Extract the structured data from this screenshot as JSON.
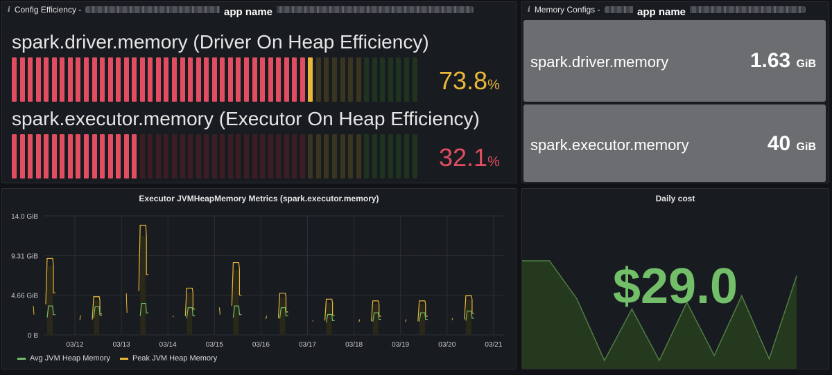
{
  "config_panel": {
    "title": "Config Efficiency -",
    "app_name": "app name",
    "gauges": [
      {
        "label": "spark.driver.memory (Driver On Heap Efficiency)",
        "value": "73.8",
        "unit": "%",
        "fraction": 0.738,
        "color": "#eab839"
      },
      {
        "label": "spark.executor.memory (Executor On Heap Efficiency)",
        "value": "32.1",
        "unit": "%",
        "fraction": 0.321,
        "color": "#e24d62"
      }
    ]
  },
  "memory_panel": {
    "title": "Memory Configs -",
    "app_name": "app name",
    "stats": [
      {
        "label": "spark.driver.memory",
        "value": "1.63",
        "unit": "GiB"
      },
      {
        "label": "spark.executor.memory",
        "value": "40",
        "unit": "GiB"
      }
    ]
  },
  "jvm_panel": {
    "title": "Executor JVMHeapMemory Metrics (spark.executor.memory)",
    "legend": [
      {
        "name": "Avg JVM Heap Memory",
        "color": "#73bf69"
      },
      {
        "name": "Peak JVM Heap Memory",
        "color": "#eab839"
      }
    ]
  },
  "cost_panel": {
    "title": "Daily cost",
    "value": "$29.0",
    "color": "#73bf69"
  },
  "chart_data": [
    {
      "type": "line",
      "title": "Executor JVMHeapMemory Metrics (spark.executor.memory)",
      "yticks": [
        "0 B",
        "4.66 GiB",
        "9.31 GiB",
        "14.0 GiB"
      ],
      "ylim": [
        0,
        14.0
      ],
      "x": [
        "03/12",
        "03/13",
        "03/14",
        "03/15",
        "03/16",
        "03/17",
        "03/18",
        "03/19",
        "03/20",
        "03/21"
      ],
      "grid": true,
      "legend_position": "bottom-left",
      "series": [
        {
          "name": "Avg JVM Heap Memory",
          "peaks": [
            3.4,
            3.3,
            3.7,
            3.2,
            3.4,
            3.2,
            2.4,
            2.6,
            2.6,
            2.8
          ]
        },
        {
          "name": "Peak JVM Heap Memory",
          "peaks": [
            9.0,
            4.5,
            12.9,
            5.5,
            8.5,
            4.9,
            4.2,
            4.0,
            4.0,
            4.6
          ]
        }
      ]
    },
    {
      "type": "area",
      "title": "Daily cost",
      "values": [
        0.65,
        0.65,
        0.42,
        0.05,
        0.36,
        0.05,
        0.4,
        0.08,
        0.44,
        0.06,
        0.56
      ]
    }
  ]
}
